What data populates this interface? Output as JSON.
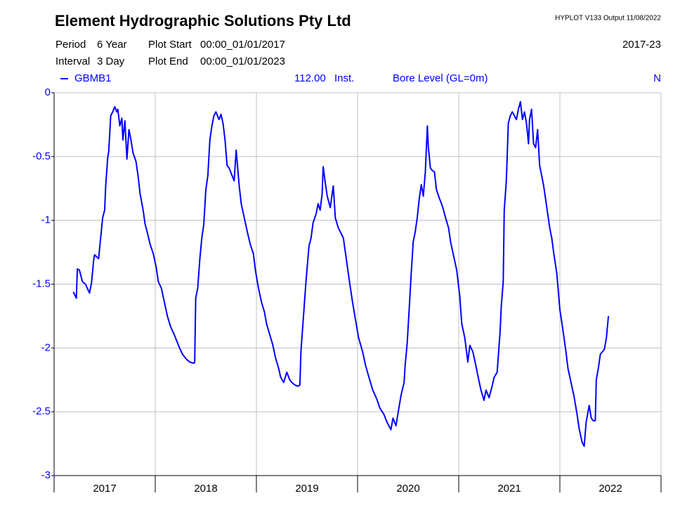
{
  "chart_data": {
    "type": "line",
    "title": "Element Hydrographic Solutions Pty Ltd",
    "program": "HYPLOT V133  Output 11/08/2022",
    "range_label": "2017-23",
    "header": {
      "period_label": "Period",
      "period": "6 Year",
      "interval_label": "Interval",
      "interval": "3 Day",
      "start_label": "Plot Start",
      "start": "00:00_01/01/2017",
      "end_label": "Plot End",
      "end": "00:00_01/01/2023"
    },
    "variable": {
      "code": "112.00",
      "mode": "Inst.",
      "label": "Bore Level (GL=0m)",
      "flag": "N"
    },
    "xlim": [
      2017,
      2023
    ],
    "xgrid": [
      2017,
      2018,
      2019,
      2020,
      2021,
      2022,
      2023
    ],
    "xticks": [
      {
        "value": 2017.5,
        "label": "2017"
      },
      {
        "value": 2018.5,
        "label": "2018"
      },
      {
        "value": 2019.5,
        "label": "2019"
      },
      {
        "value": 2020.5,
        "label": "2020"
      },
      {
        "value": 2021.5,
        "label": "2021"
      },
      {
        "value": 2022.5,
        "label": "2022"
      }
    ],
    "ylim": [
      -3,
      0
    ],
    "yticks": [
      0,
      -0.5,
      -1,
      -1.5,
      -2,
      -2.5,
      -3
    ],
    "grid": true,
    "x": [
      2017.19,
      2017.22,
      2017.23,
      2017.25,
      2017.28,
      2017.31,
      2017.35,
      2017.37,
      2017.39,
      2017.4,
      2017.44,
      2017.46,
      2017.48,
      2017.5,
      2017.51,
      2017.53,
      2017.54,
      2017.56,
      2017.58,
      2017.6,
      2017.62,
      2017.63,
      2017.65,
      2017.67,
      2017.68,
      2017.7,
      2017.72,
      2017.74,
      2017.76,
      2017.78,
      2017.81,
      2017.83,
      2017.85,
      2017.88,
      2017.9,
      2017.92,
      2017.95,
      2017.98,
      2018.01,
      2018.03,
      2018.06,
      2018.09,
      2018.12,
      2018.15,
      2018.19,
      2018.22,
      2018.24,
      2018.27,
      2018.31,
      2018.34,
      2018.38,
      2018.39,
      2018.4,
      2018.42,
      2018.44,
      2018.46,
      2018.48,
      2018.5,
      2018.52,
      2018.54,
      2018.56,
      2018.58,
      2018.6,
      2018.63,
      2018.65,
      2018.67,
      2018.69,
      2018.71,
      2018.73,
      2018.76,
      2018.78,
      2018.8,
      2018.83,
      2018.85,
      2018.88,
      2018.91,
      2018.94,
      2018.97,
      2018.99,
      2019.02,
      2019.05,
      2019.08,
      2019.1,
      2019.13,
      2019.16,
      2019.19,
      2019.22,
      2019.24,
      2019.27,
      2019.3,
      2019.33,
      2019.35,
      2019.38,
      2019.41,
      2019.43,
      2019.44,
      2019.47,
      2019.49,
      2019.52,
      2019.54,
      2019.56,
      2019.59,
      2019.61,
      2019.63,
      2019.65,
      2019.66,
      2019.68,
      2019.7,
      2019.73,
      2019.76,
      2019.78,
      2019.81,
      2019.83,
      2019.86,
      2019.89,
      2019.92,
      2019.95,
      2019.98,
      2020.01,
      2020.05,
      2020.08,
      2020.12,
      2020.15,
      2020.19,
      2020.22,
      2020.26,
      2020.29,
      2020.33,
      2020.35,
      2020.38,
      2020.4,
      2020.43,
      2020.46,
      2020.47,
      2020.49,
      2020.51,
      2020.53,
      2020.55,
      2020.57,
      2020.59,
      2020.61,
      2020.63,
      2020.65,
      2020.67,
      2020.69,
      2020.7,
      2020.72,
      2020.74,
      2020.76,
      2020.78,
      2020.81,
      2020.83,
      2020.85,
      2020.87,
      2020.9,
      2020.92,
      2020.95,
      2020.98,
      2021.01,
      2021.03,
      2021.06,
      2021.09,
      2021.11,
      2021.14,
      2021.17,
      2021.19,
      2021.22,
      2021.25,
      2021.27,
      2021.3,
      2021.33,
      2021.35,
      2021.38,
      2021.41,
      2021.42,
      2021.44,
      2021.45,
      2021.47,
      2021.48,
      2021.49,
      2021.51,
      2021.53,
      2021.55,
      2021.57,
      2021.59,
      2021.61,
      2021.63,
      2021.65,
      2021.67,
      2021.69,
      2021.7,
      2021.72,
      2021.74,
      2021.76,
      2021.78,
      2021.8,
      2021.82,
      2021.84,
      2021.86,
      2021.88,
      2021.9,
      2021.92,
      2021.94,
      2021.97,
      2022.0,
      2022.03,
      2022.06,
      2022.08,
      2022.11,
      2022.14,
      2022.17,
      2022.19,
      2022.22,
      2022.24,
      2022.26,
      2022.29,
      2022.31,
      2022.33,
      2022.35,
      2022.36,
      2022.38,
      2022.4,
      2022.42,
      2022.44,
      2022.46,
      2022.48
    ],
    "series": [
      {
        "name": "GBMB1",
        "color": "#0000ff",
        "values": [
          -1.56,
          -1.61,
          -1.38,
          -1.39,
          -1.48,
          -1.5,
          -1.57,
          -1.49,
          -1.32,
          -1.27,
          -1.3,
          -1.14,
          -0.98,
          -0.92,
          -0.73,
          -0.51,
          -0.46,
          -0.18,
          -0.15,
          -0.11,
          -0.15,
          -0.13,
          -0.26,
          -0.2,
          -0.37,
          -0.22,
          -0.52,
          -0.29,
          -0.37,
          -0.47,
          -0.54,
          -0.65,
          -0.79,
          -0.92,
          -1.03,
          -1.09,
          -1.19,
          -1.26,
          -1.37,
          -1.48,
          -1.53,
          -1.64,
          -1.75,
          -1.83,
          -1.9,
          -1.96,
          -2.0,
          -2.05,
          -2.09,
          -2.11,
          -2.12,
          -2.11,
          -1.61,
          -1.53,
          -1.31,
          -1.14,
          -1.03,
          -0.76,
          -0.65,
          -0.37,
          -0.26,
          -0.18,
          -0.15,
          -0.21,
          -0.17,
          -0.24,
          -0.37,
          -0.57,
          -0.59,
          -0.65,
          -0.69,
          -0.45,
          -0.73,
          -0.87,
          -0.98,
          -1.09,
          -1.19,
          -1.26,
          -1.39,
          -1.53,
          -1.64,
          -1.72,
          -1.81,
          -1.89,
          -1.97,
          -2.08,
          -2.16,
          -2.23,
          -2.27,
          -2.19,
          -2.25,
          -2.27,
          -2.29,
          -2.3,
          -2.29,
          -2.03,
          -1.7,
          -1.48,
          -1.2,
          -1.14,
          -1.02,
          -0.95,
          -0.87,
          -0.92,
          -0.79,
          -0.58,
          -0.7,
          -0.81,
          -0.9,
          -0.73,
          -0.98,
          -1.06,
          -1.09,
          -1.14,
          -1.31,
          -1.48,
          -1.64,
          -1.78,
          -1.92,
          -2.03,
          -2.14,
          -2.25,
          -2.33,
          -2.4,
          -2.47,
          -2.52,
          -2.58,
          -2.64,
          -2.55,
          -2.61,
          -2.51,
          -2.37,
          -2.27,
          -2.14,
          -1.97,
          -1.7,
          -1.42,
          -1.17,
          -1.09,
          -0.98,
          -0.83,
          -0.72,
          -0.81,
          -0.62,
          -0.26,
          -0.43,
          -0.59,
          -0.61,
          -0.62,
          -0.76,
          -0.83,
          -0.87,
          -0.92,
          -0.98,
          -1.06,
          -1.17,
          -1.28,
          -1.39,
          -1.59,
          -1.81,
          -1.92,
          -2.11,
          -1.98,
          -2.03,
          -2.14,
          -2.22,
          -2.33,
          -2.41,
          -2.33,
          -2.39,
          -2.3,
          -2.23,
          -2.19,
          -1.86,
          -1.68,
          -1.48,
          -0.92,
          -0.7,
          -0.48,
          -0.24,
          -0.18,
          -0.15,
          -0.18,
          -0.21,
          -0.13,
          -0.07,
          -0.21,
          -0.15,
          -0.24,
          -0.4,
          -0.21,
          -0.13,
          -0.4,
          -0.43,
          -0.29,
          -0.57,
          -0.65,
          -0.73,
          -0.84,
          -0.95,
          -1.06,
          -1.14,
          -1.26,
          -1.42,
          -1.7,
          -1.86,
          -2.03,
          -2.16,
          -2.27,
          -2.38,
          -2.52,
          -2.63,
          -2.74,
          -2.77,
          -2.58,
          -2.45,
          -2.55,
          -2.57,
          -2.57,
          -2.25,
          -2.16,
          -2.05,
          -2.03,
          -2.01,
          -1.92,
          -1.75
        ]
      }
    ]
  }
}
